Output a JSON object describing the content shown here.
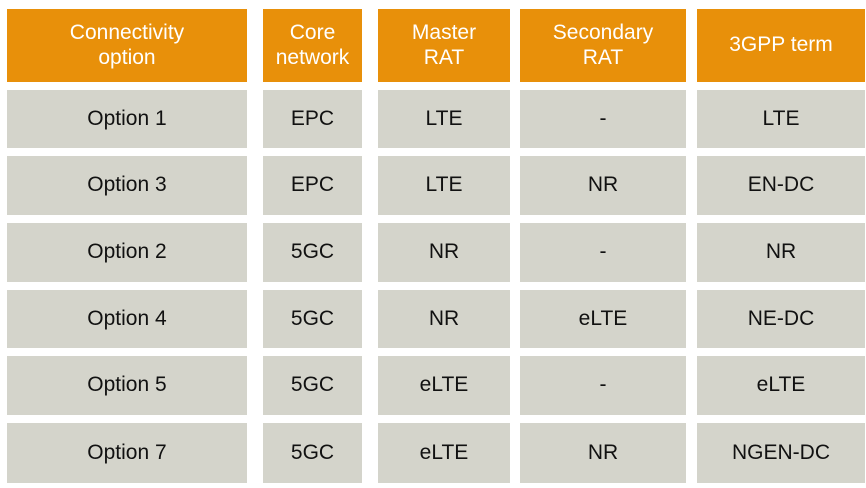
{
  "table": {
    "headers": [
      "Connectivity\noption",
      "Core\nnetwork",
      "Master\nRAT",
      "Secondary\nRAT",
      "3GPP term"
    ],
    "rows": [
      [
        "Option 1",
        "EPC",
        "LTE",
        "-",
        "LTE"
      ],
      [
        "Option 3",
        "EPC",
        "LTE",
        "NR",
        "EN-DC"
      ],
      [
        "Option 2",
        "5GC",
        "NR",
        "-",
        "NR"
      ],
      [
        "Option 4",
        "5GC",
        "NR",
        "eLTE",
        "NE-DC"
      ],
      [
        "Option 5",
        "5GC",
        "eLTE",
        "-",
        "eLTE"
      ],
      [
        "Option 7",
        "5GC",
        "eLTE",
        "NR",
        "NGEN-DC"
      ]
    ]
  },
  "colors": {
    "header_bg": "#E8900A",
    "body_bg": "#D4D4CB"
  }
}
